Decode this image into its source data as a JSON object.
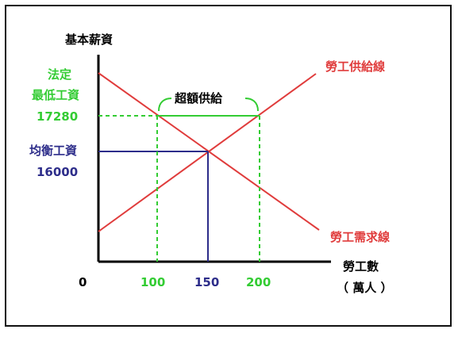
{
  "colors": {
    "axis": "#000000",
    "supply": "#e03c3c",
    "demand": "#e03c3c",
    "minimum_wage": "#33cc33",
    "equilibrium": "#2d2d8a"
  },
  "axes": {
    "y_label": "基本薪資",
    "x_label": "勞工數",
    "x_unit": "（ 萬人 ）",
    "origin": "0"
  },
  "curves": {
    "supply_label": "勞工供給線",
    "demand_label": "勞工需求線"
  },
  "minimum_wage": {
    "label_line1": "法定",
    "label_line2": "最低工資",
    "value": "17280"
  },
  "equilibrium": {
    "label": "均衡工資",
    "value": "16000",
    "quantity": "150"
  },
  "surplus": {
    "label": "超額供給",
    "q_demanded": "100",
    "q_supplied": "200"
  }
}
